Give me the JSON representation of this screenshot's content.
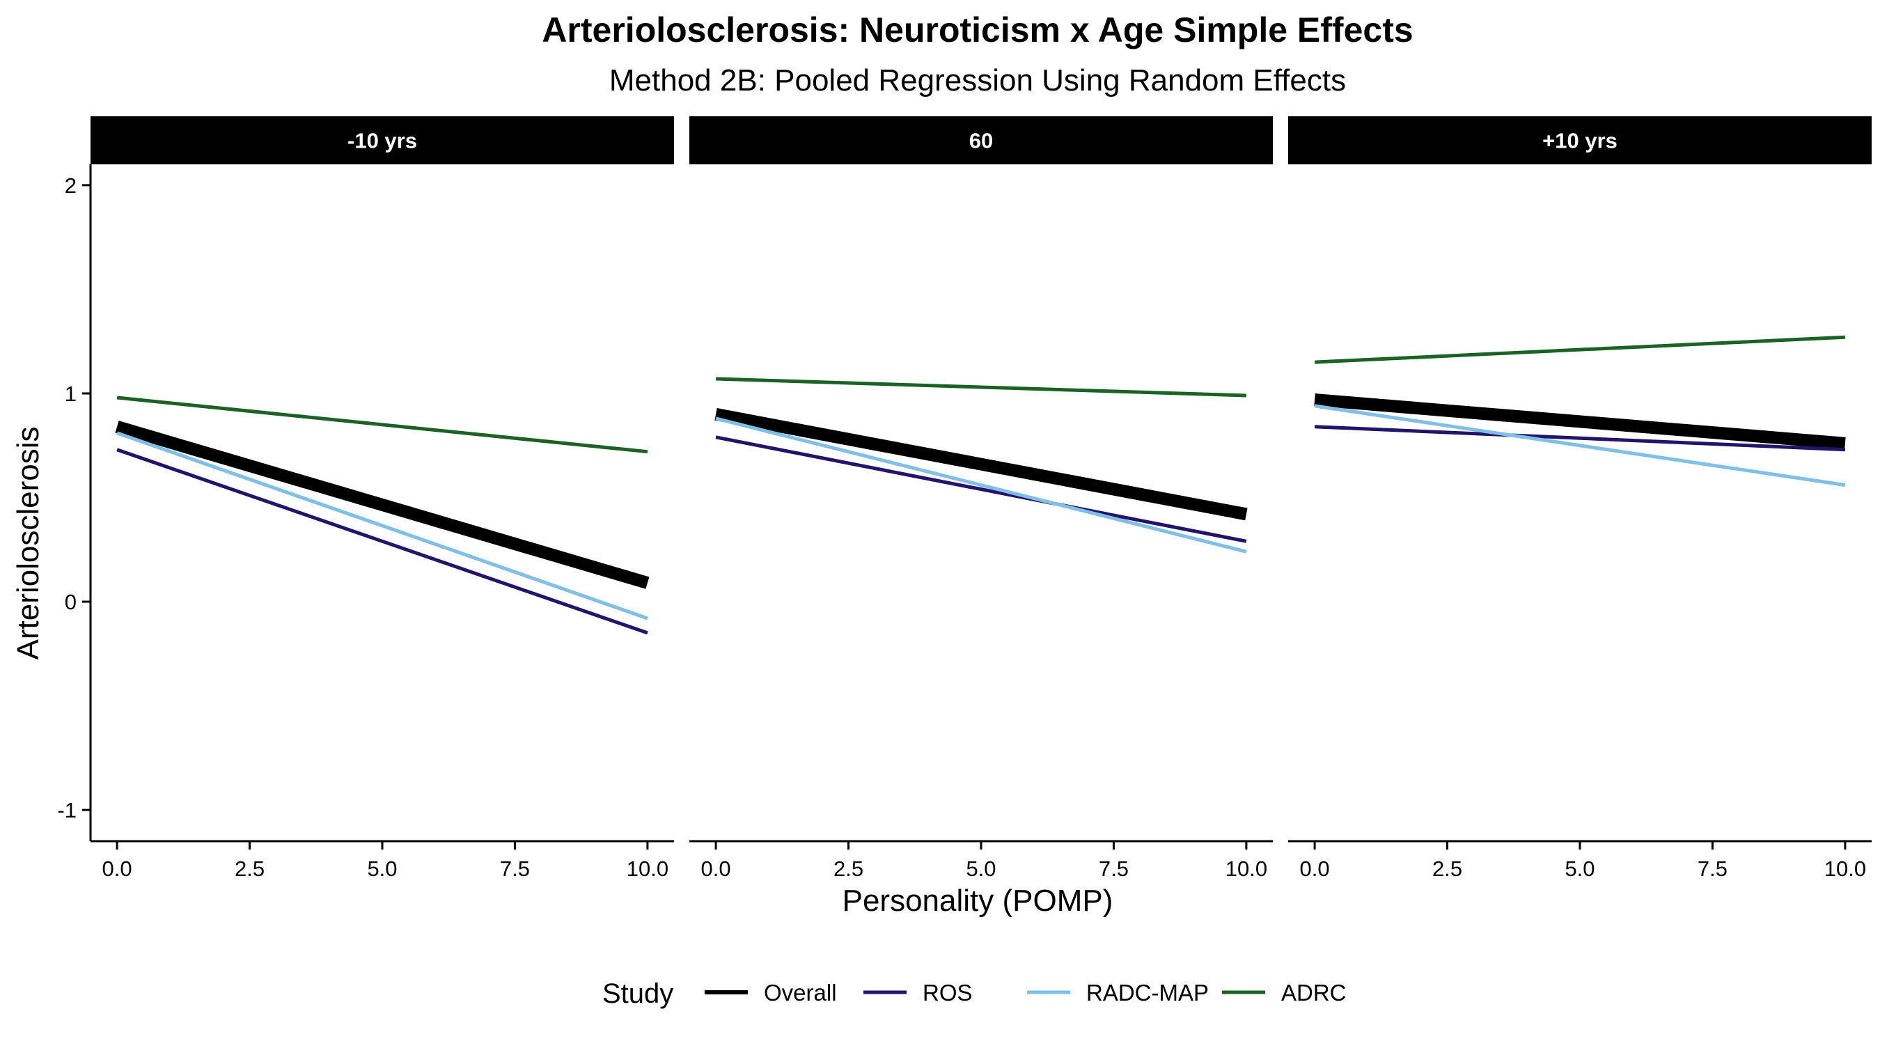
{
  "chart_data": {
    "type": "line",
    "title": "Arteriolosclerosis: Neuroticism x Age Simple Effects",
    "subtitle": "Method 2B: Pooled Regression Using Random Effects",
    "xlabel": "Personality (POMP)",
    "ylabel": "Arteriolosclerosis",
    "xlim": [
      -0.5,
      10.5
    ],
    "ylim": [
      -1.15,
      2.1
    ],
    "x_ticks": [
      0,
      2.5,
      5,
      7.5,
      10
    ],
    "x_tick_labels": [
      "0.0",
      "2.5",
      "5.0",
      "7.5",
      "10.0"
    ],
    "y_ticks": [
      -1,
      0,
      1,
      2
    ],
    "y_tick_labels": [
      "-1",
      "0",
      "1",
      "2"
    ],
    "grid": false,
    "legend": {
      "title": "Study",
      "position": "bottom",
      "entries": [
        {
          "name": "Overall",
          "color": "#000000",
          "width": "thick"
        },
        {
          "name": "ROS",
          "color": "#24136b",
          "width": "normal"
        },
        {
          "name": "RADC-MAP",
          "color": "#7ec0e8",
          "width": "normal"
        },
        {
          "name": "ADRC",
          "color": "#1b6325",
          "width": "normal"
        }
      ]
    },
    "facets": [
      {
        "label": "-10 yrs",
        "series": [
          {
            "name": "Overall",
            "x": [
              0,
              10
            ],
            "y": [
              0.84,
              0.09
            ]
          },
          {
            "name": "ROS",
            "x": [
              0,
              10
            ],
            "y": [
              0.73,
              -0.15
            ]
          },
          {
            "name": "RADC-MAP",
            "x": [
              0,
              10
            ],
            "y": [
              0.81,
              -0.08
            ]
          },
          {
            "name": "ADRC",
            "x": [
              0,
              10
            ],
            "y": [
              0.98,
              0.72
            ]
          }
        ]
      },
      {
        "label": "60",
        "series": [
          {
            "name": "Overall",
            "x": [
              0,
              10
            ],
            "y": [
              0.9,
              0.42
            ]
          },
          {
            "name": "ROS",
            "x": [
              0,
              10
            ],
            "y": [
              0.79,
              0.29
            ]
          },
          {
            "name": "RADC-MAP",
            "x": [
              0,
              10
            ],
            "y": [
              0.88,
              0.24
            ]
          },
          {
            "name": "ADRC",
            "x": [
              0,
              10
            ],
            "y": [
              1.07,
              0.99
            ]
          }
        ]
      },
      {
        "label": "+10 yrs",
        "series": [
          {
            "name": "Overall",
            "x": [
              0,
              10
            ],
            "y": [
              0.97,
              0.76
            ]
          },
          {
            "name": "ROS",
            "x": [
              0,
              10
            ],
            "y": [
              0.84,
              0.73
            ]
          },
          {
            "name": "RADC-MAP",
            "x": [
              0,
              10
            ],
            "y": [
              0.94,
              0.56
            ]
          },
          {
            "name": "ADRC",
            "x": [
              0,
              10
            ],
            "y": [
              1.15,
              1.27
            ]
          }
        ]
      }
    ]
  }
}
